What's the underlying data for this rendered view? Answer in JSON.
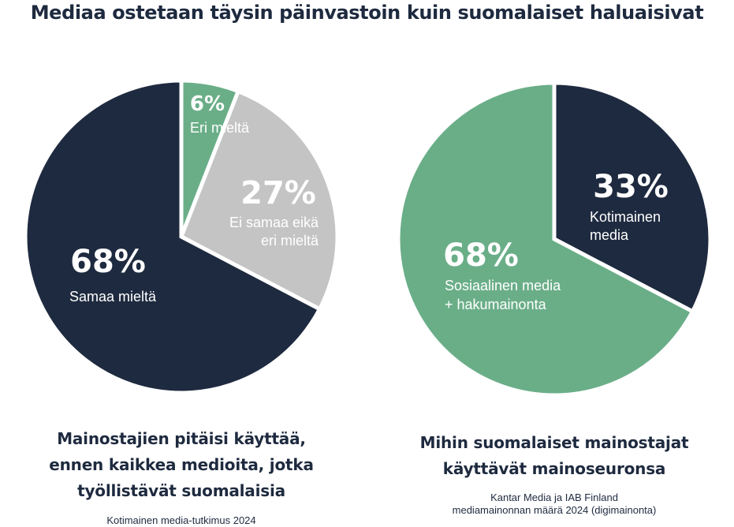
{
  "header": {
    "title": "Mediaa ostetaan täysin päinvastoin kuin suomalaiset haluaisivat"
  },
  "colors": {
    "navy": "#1e2a3f",
    "green": "#6aae88",
    "gray": "#c4c4c4",
    "text": "#1e2a3f",
    "white": "#ffffff"
  },
  "chart_data": [
    {
      "type": "pie",
      "title": "Mainostajien pitäisi käyttää, ennen kaikkea medioita, jotka työllistävät suomalaisia",
      "caption_lines": [
        "Mainostajien pitäisi käyttää,",
        "ennen kaikkea medioita, jotka",
        "työllistävät suomalaisia"
      ],
      "source": [
        "Kotimainen media-tutkimus 2024"
      ],
      "slices": [
        {
          "label": "Eri mieltä",
          "label_lines": [
            "Eri mieltä"
          ],
          "value": 6,
          "display": "6%",
          "color": "#6aae88"
        },
        {
          "label": "Ei samaa eikä eri mieltä",
          "label_lines": [
            "Ei samaa eikä",
            "eri mieltä"
          ],
          "value": 27,
          "display": "27%",
          "color": "#c4c4c4"
        },
        {
          "label": "Samaa mieltä",
          "label_lines": [
            "Samaa mieltä"
          ],
          "value": 68,
          "display": "68%",
          "color": "#1e2a3f"
        }
      ]
    },
    {
      "type": "pie",
      "title": "Mihin suomalaiset mainostajat käyttävät mainoseuronsa",
      "caption_lines": [
        "Mihin suomalaiset mainostajat",
        "käyttävät mainoseuronsa"
      ],
      "source": [
        "Kantar Media ja IAB Finland",
        "mediamainonnan määrä 2024 (digimainonta)"
      ],
      "slices": [
        {
          "label": "Kotimainen media",
          "label_lines": [
            "Kotimainen",
            "media"
          ],
          "value": 33,
          "display": "33%",
          "color": "#1e2a3f"
        },
        {
          "label": "Sosiaalinen media + hakumainonta",
          "label_lines": [
            "Sosiaalinen media",
            "+ hakumainonta"
          ],
          "value": 68,
          "display": "68%",
          "color": "#6aae88"
        }
      ]
    }
  ]
}
